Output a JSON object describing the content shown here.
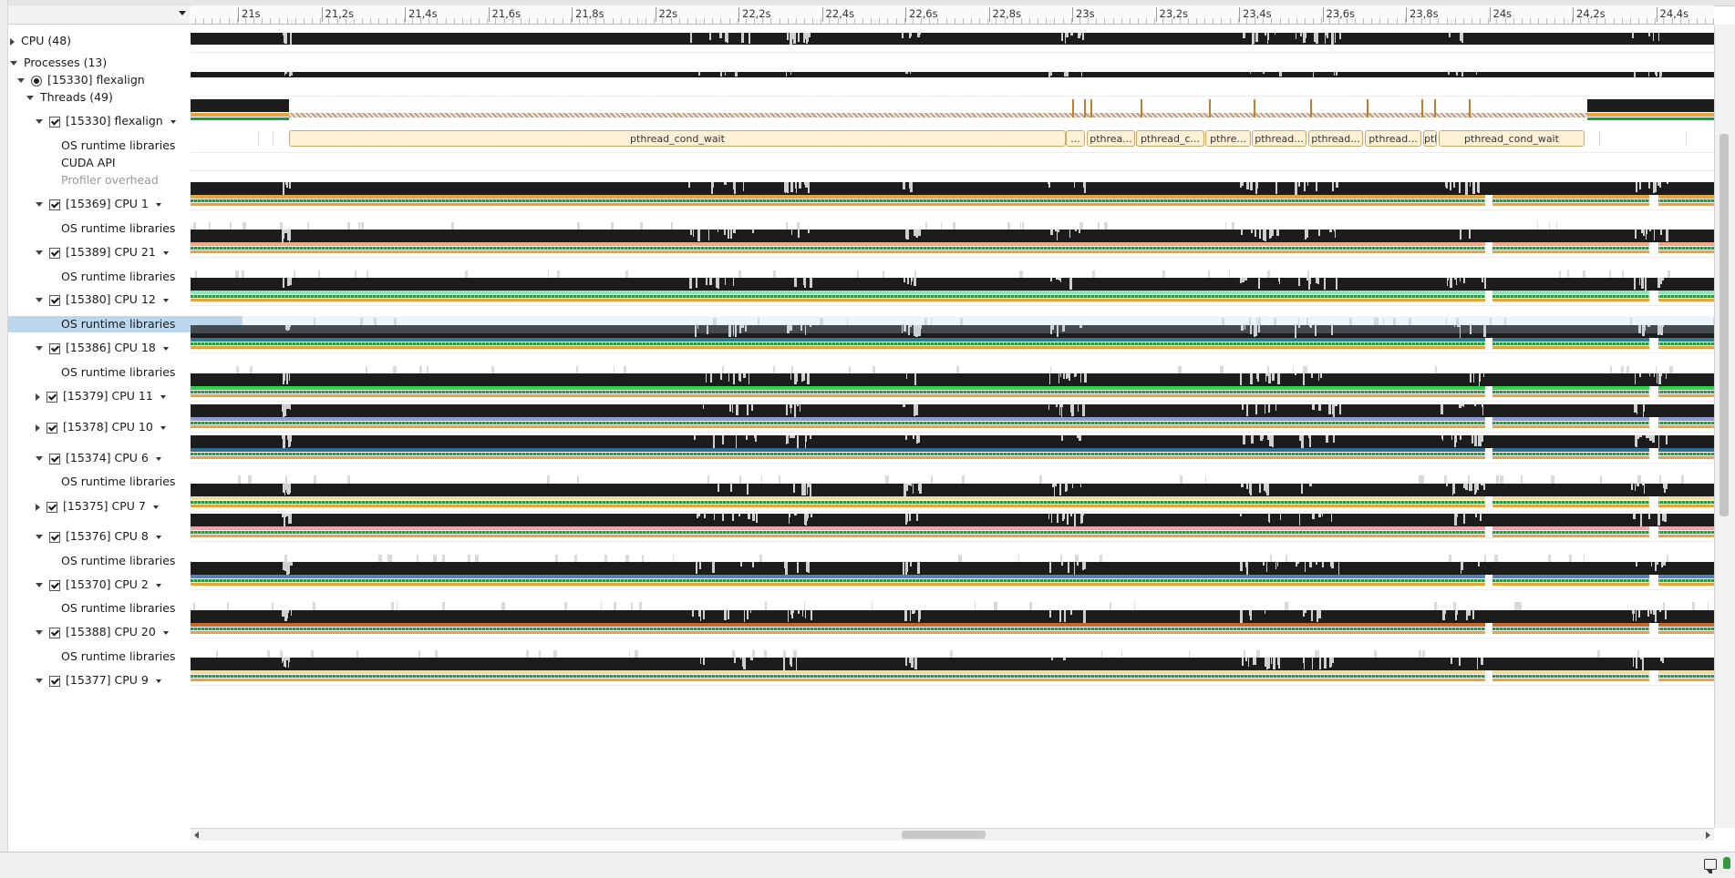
{
  "ruler": {
    "ticks": [
      "21s",
      "21,2s",
      "21,4s",
      "21,6s",
      "21,8s",
      "22s",
      "22,2s",
      "22,4s",
      "22,6s",
      "22,8s",
      "23s",
      "23,2s",
      "23,4s",
      "23,6s",
      "23,8s",
      "24s",
      "24,2s",
      "24,4s"
    ]
  },
  "tree": {
    "cpu": "CPU (48)",
    "processes": "Processes (13)",
    "process": "[15330] flexalign",
    "threads": "Threads (49)",
    "main_thread": "[15330] flexalign",
    "osrt": "OS runtime libraries",
    "cuda": "CUDA API",
    "profiler": "Profiler overhead",
    "thread_rows": [
      {
        "label": "[15369] CPU 1",
        "expanded": true
      },
      {
        "label": "[15389] CPU 21",
        "expanded": true
      },
      {
        "label": "[15380] CPU 12",
        "expanded": true
      },
      {
        "label": "[15386] CPU 18",
        "expanded": true
      },
      {
        "label": "[15379] CPU 11",
        "expanded": false
      },
      {
        "label": "[15378] CPU 10",
        "expanded": false
      },
      {
        "label": "[15374] CPU 6",
        "expanded": true
      },
      {
        "label": "[15375] CPU 7",
        "expanded": false
      },
      {
        "label": "[15376] CPU 8",
        "expanded": true
      },
      {
        "label": "[15370] CPU 2",
        "expanded": true
      },
      {
        "label": "[15388] CPU 20",
        "expanded": true
      },
      {
        "label": "[15377] CPU 9",
        "expanded": true
      }
    ]
  },
  "osrt_events": [
    {
      "label": "pthread_cond_wait"
    },
    {
      "label": "..."
    },
    {
      "label": "pthrea..."
    },
    {
      "label": "pthread_c..."
    },
    {
      "label": "pthre..."
    },
    {
      "label": "pthread..."
    },
    {
      "label": "pthread..."
    },
    {
      "label": "pthread..."
    },
    {
      "label": "pth..."
    },
    {
      "label": "pthread_cond_wait"
    }
  ],
  "colors": {
    "cpu_usage": "#1c1c1c",
    "state_green": "#1e9e3a",
    "state_orange": "#e8a33d",
    "osrt_event": "#fff1d6",
    "selection": "#bcd7ec"
  }
}
